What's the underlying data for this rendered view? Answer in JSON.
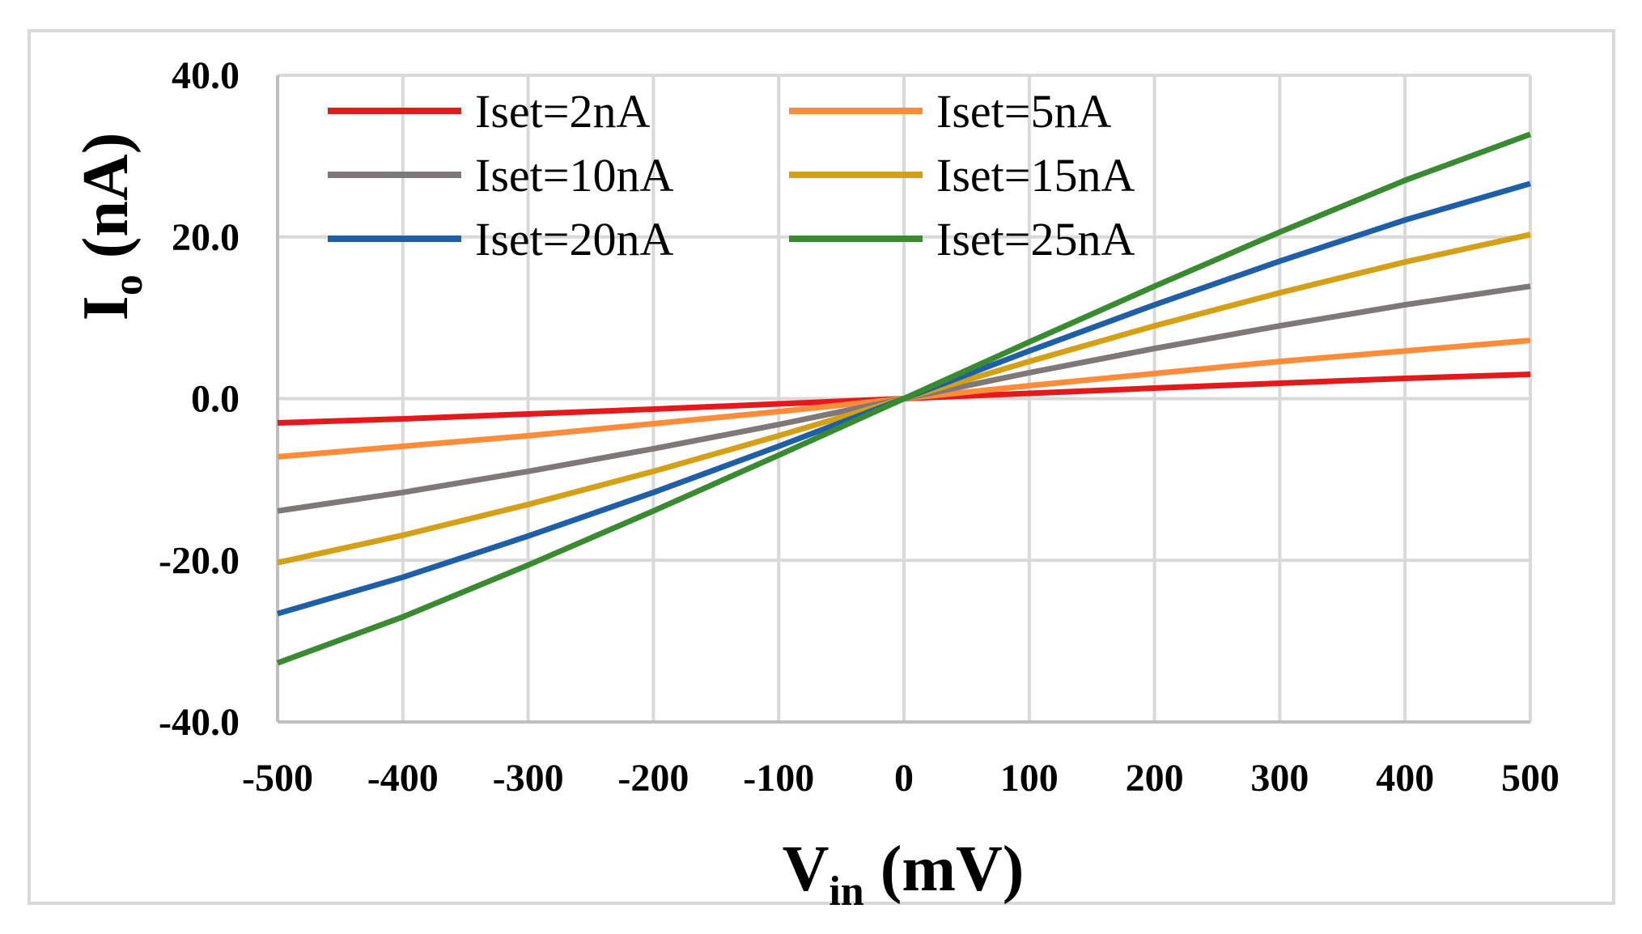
{
  "chart_data": {
    "type": "line",
    "title": "",
    "xlabel": {
      "main": "V",
      "sub": "in",
      "unit": " (mV)"
    },
    "ylabel": {
      "main": "I",
      "sub": "o",
      "unit": " (nA)"
    },
    "xlim": [
      -500,
      500
    ],
    "ylim": [
      -40,
      40
    ],
    "x_ticks": [
      "-500",
      "-400",
      "-300",
      "-200",
      "-100",
      "0",
      "100",
      "200",
      "300",
      "400",
      "500"
    ],
    "y_ticks": [
      "40.0",
      "20.0",
      "0.0",
      "-20.0",
      "-40.0"
    ],
    "grid": true,
    "legend_position": "top-left",
    "x": [
      -500,
      -400,
      -300,
      -200,
      -100,
      0,
      100,
      200,
      300,
      400,
      500
    ],
    "series": [
      {
        "name": "Iset=2nA",
        "color": "#e31a1c",
        "values": [
          -3.0,
          -2.5,
          -1.9,
          -1.3,
          -0.65,
          0,
          0.65,
          1.3,
          1.9,
          2.5,
          3.0
        ]
      },
      {
        "name": "Iset=5nA",
        "color": "#ff8c3a",
        "values": [
          -7.2,
          -5.9,
          -4.6,
          -3.1,
          -1.6,
          0,
          1.6,
          3.1,
          4.6,
          5.9,
          7.2
        ]
      },
      {
        "name": "Iset=10nA",
        "color": "#7f7778",
        "values": [
          -13.9,
          -11.6,
          -9.0,
          -6.2,
          -3.2,
          0,
          3.2,
          6.2,
          9.0,
          11.6,
          13.9
        ]
      },
      {
        "name": "Iset=15nA",
        "color": "#d4a017",
        "values": [
          -20.3,
          -16.9,
          -13.1,
          -9.0,
          -4.6,
          0,
          4.6,
          9.0,
          13.1,
          16.9,
          20.3
        ]
      },
      {
        "name": "Iset=20nA",
        "color": "#1f5fa8",
        "values": [
          -26.6,
          -22.1,
          -17.0,
          -11.6,
          -5.9,
          0,
          5.9,
          11.6,
          17.0,
          22.1,
          26.6
        ]
      },
      {
        "name": "Iset=25nA",
        "color": "#3a8a32",
        "values": [
          -32.7,
          -27.0,
          -20.6,
          -13.9,
          -7.0,
          0,
          7.0,
          13.9,
          20.6,
          27.0,
          32.7
        ]
      }
    ]
  }
}
